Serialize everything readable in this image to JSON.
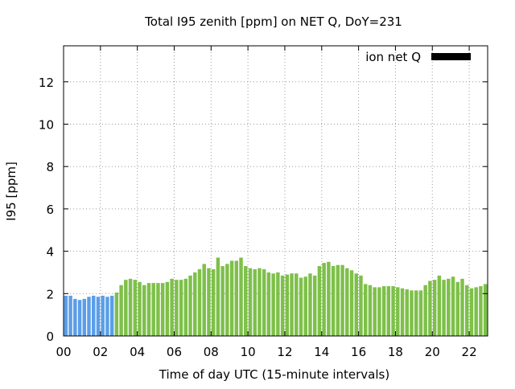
{
  "chart_data": {
    "type": "bar",
    "title": "Total I95 zenith [ppm] on NET Q, DoY=231",
    "xlabel": "Time of day UTC (15-minute intervals)",
    "ylabel": "I95 [ppm]",
    "xlim": [
      0,
      23
    ],
    "ylim": [
      0,
      13.7
    ],
    "x_ticks": [
      0,
      2,
      4,
      6,
      8,
      10,
      12,
      14,
      16,
      18,
      20,
      22
    ],
    "x_tick_labels": [
      "00",
      "02",
      "04",
      "06",
      "08",
      "10",
      "12",
      "14",
      "16",
      "18",
      "20",
      "22"
    ],
    "y_ticks": [
      0,
      2,
      4,
      6,
      8,
      10,
      12
    ],
    "y_tick_labels": [
      "0",
      "2",
      "4",
      "6",
      "8",
      "10",
      "12"
    ],
    "grid": true,
    "legend": {
      "position": "top-right",
      "entries": [
        {
          "label": "ion net Q",
          "color": "#000000"
        }
      ]
    },
    "bar_interval_hours": 0.25,
    "colors": {
      "early": "#5b9ee8",
      "main": "#7ec04a",
      "grid": "#999999"
    },
    "series": [
      {
        "values": [
          1.9,
          1.9,
          1.75,
          1.7,
          1.75,
          1.85,
          1.9,
          1.85,
          1.9,
          1.85,
          1.9,
          2.05,
          2.4,
          2.65,
          2.7,
          2.65,
          2.55,
          2.4,
          2.5,
          2.5,
          2.5,
          2.5,
          2.55,
          2.7,
          2.65,
          2.65,
          2.7,
          2.85,
          3.0,
          3.15,
          3.4,
          3.2,
          3.15,
          3.7,
          3.3,
          3.4,
          3.55,
          3.55,
          3.7,
          3.3,
          3.2,
          3.15,
          3.2,
          3.15,
          3.0,
          2.95,
          3.0,
          2.85,
          2.9,
          2.95,
          2.95,
          2.75,
          2.8,
          2.95,
          2.85,
          3.3,
          3.45,
          3.5,
          3.3,
          3.35,
          3.35,
          3.2,
          3.1,
          2.95,
          2.85,
          2.45,
          2.4,
          2.3,
          2.3,
          2.35,
          2.35,
          2.35,
          2.3,
          2.25,
          2.2,
          2.15,
          2.15,
          2.15,
          2.4,
          2.6,
          2.65,
          2.85,
          2.65,
          2.7,
          2.8,
          2.55,
          2.7,
          2.4,
          2.25,
          2.3,
          2.35,
          2.45,
          2.4
        ],
        "color_split_index": 11
      }
    ]
  }
}
